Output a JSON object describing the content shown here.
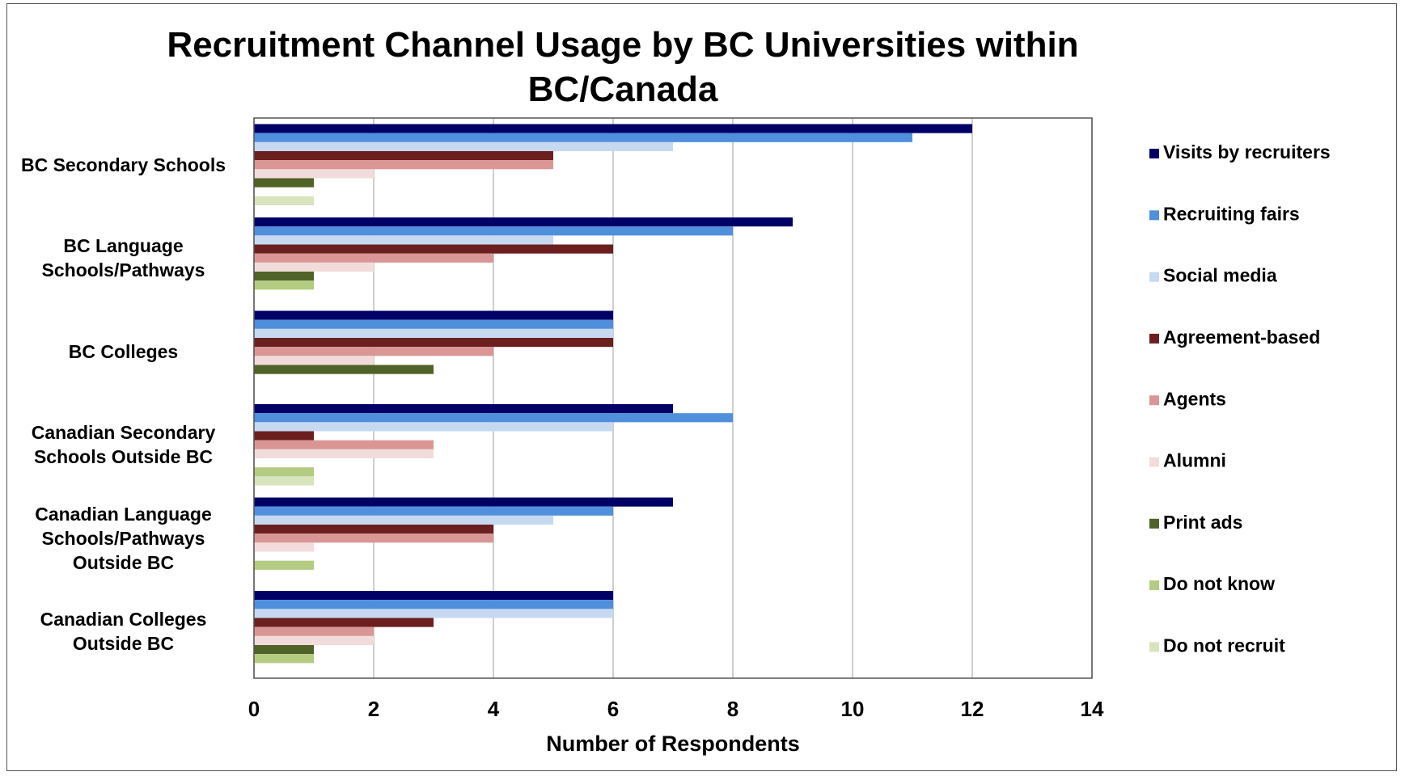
{
  "chart_data": {
    "type": "barh",
    "title": "Recruitment Channel Usage by BC Universities within BC/Canada",
    "xlabel": "Number of Respondents",
    "categories": [
      "BC Secondary Schools",
      "BC Language Schools/Pathways",
      "BC Colleges",
      "Canadian Secondary Schools Outside BC",
      "Canadian Language Schools/Pathways Outside BC",
      "Canadian Colleges Outside BC"
    ],
    "series": [
      {
        "name": "Visits by recruiters",
        "color": "#000066",
        "values": [
          12,
          9,
          6,
          7,
          7,
          6
        ]
      },
      {
        "name": "Recruiting fairs",
        "color": "#4f8fdc",
        "values": [
          11,
          8,
          6,
          8,
          6,
          6
        ]
      },
      {
        "name": "Social media",
        "color": "#c6d9f1",
        "values": [
          7,
          5,
          6,
          6,
          5,
          6
        ]
      },
      {
        "name": "Agreement-based",
        "color": "#6b1f1f",
        "values": [
          5,
          6,
          6,
          1,
          4,
          3
        ]
      },
      {
        "name": "Agents",
        "color": "#d99694",
        "values": [
          5,
          4,
          4,
          3,
          4,
          2
        ]
      },
      {
        "name": "Alumni",
        "color": "#f2dcdb",
        "values": [
          2,
          2,
          2,
          3,
          1,
          2
        ]
      },
      {
        "name": "Print ads",
        "color": "#4f6228",
        "values": [
          1,
          1,
          3,
          0,
          0,
          1
        ]
      },
      {
        "name": "Do not know",
        "color": "#b3cc82",
        "values": [
          0,
          1,
          0,
          1,
          1,
          1
        ]
      },
      {
        "name": "Do not recruit",
        "color": "#d7e4bd",
        "values": [
          1,
          0,
          0,
          1,
          0,
          0
        ]
      }
    ],
    "xlim": [
      0,
      14
    ],
    "xticks": [
      0,
      2,
      4,
      6,
      8,
      10,
      12,
      14
    ],
    "grid": true,
    "legend": "right"
  }
}
